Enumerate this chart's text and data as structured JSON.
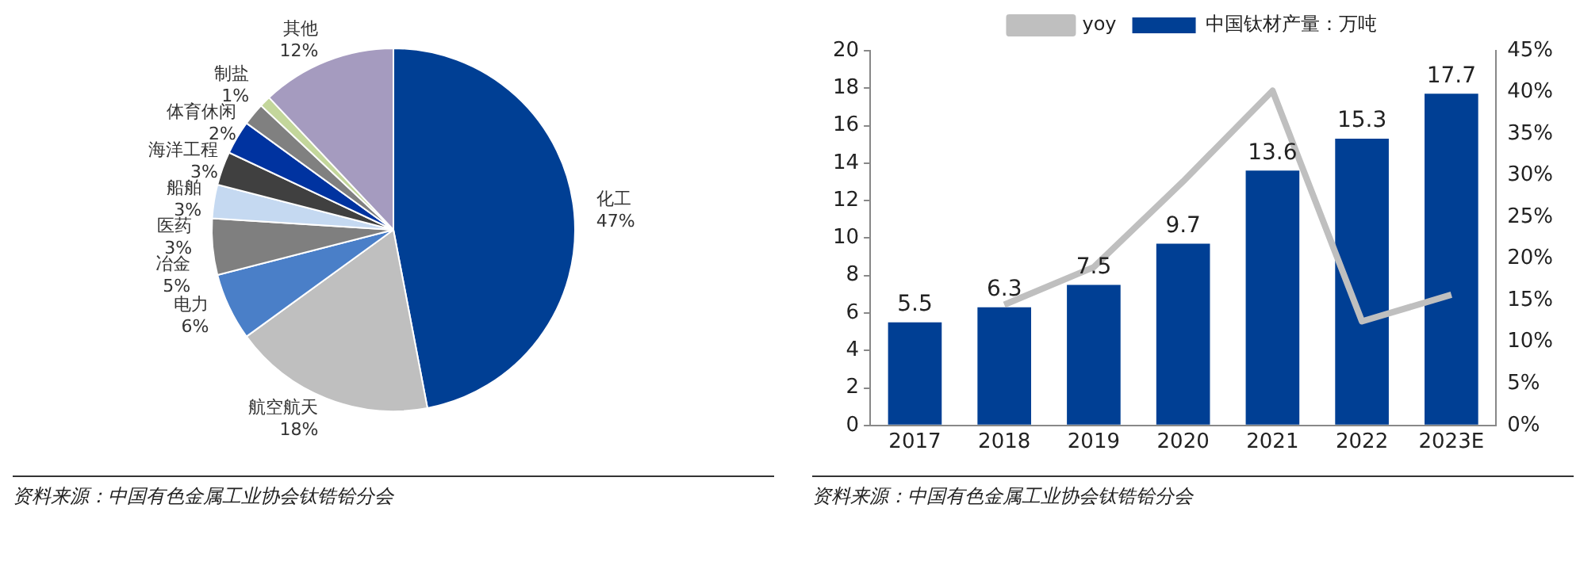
{
  "chart_data": [
    {
      "type": "pie",
      "categories": [
        "化工",
        "航空航天",
        "电力",
        "冶金",
        "医药",
        "船舶",
        "海洋工程",
        "体育休闲",
        "制盐",
        "其他"
      ],
      "values": [
        47,
        18,
        6,
        5,
        3,
        3,
        3,
        2,
        1,
        12
      ],
      "colors": [
        "#003f94",
        "#bfbfbf",
        "#4a7fc8",
        "#7f7f7f",
        "#c5d9f1",
        "#404040",
        "#0033a0",
        "#808080",
        "#c3d69b",
        "#a59bbf"
      ],
      "value_labels": [
        "47%",
        "18%",
        "6%",
        "5%",
        "3%",
        "3%",
        "3%",
        "2%",
        "1%",
        "12%"
      ],
      "legend": false,
      "annotations": [
        "资料来源：中国有色金属工业协会钛锆铪分会"
      ]
    },
    {
      "type": "bar",
      "categories": [
        "2017",
        "2018",
        "2019",
        "2020",
        "2021",
        "2022",
        "2023E"
      ],
      "series": [
        {
          "name": "中国钛材产量：万吨",
          "color": "#003f94",
          "values": [
            5.5,
            6.3,
            7.5,
            9.7,
            13.6,
            15.3,
            17.7
          ],
          "value_labels": [
            "5.5",
            "6.3",
            "7.5",
            "9.7",
            "13.6",
            "15.3",
            "17.7"
          ]
        },
        {
          "name": "yoy",
          "type": "line",
          "axis": "y2",
          "color": "#bfbfbf",
          "values": [
            null,
            14.5,
            19,
            29.3,
            40.2,
            12.5,
            15.7
          ]
        }
      ],
      "ylim": [
        0,
        20
      ],
      "yticks": [
        0,
        2,
        4,
        6,
        8,
        10,
        12,
        14,
        16,
        18,
        20
      ],
      "y2lim": [
        0,
        45
      ],
      "y2ticks": [
        {
          "value": 0,
          "label": "0%"
        },
        {
          "value": 5,
          "label": "5%"
        },
        {
          "value": 10,
          "label": "10%"
        },
        {
          "value": 15,
          "label": "15%"
        },
        {
          "value": 20,
          "label": "20%"
        },
        {
          "value": 25,
          "label": "25%"
        },
        {
          "value": 30,
          "label": "30%"
        },
        {
          "value": 35,
          "label": "35%"
        },
        {
          "value": 40,
          "label": "40%"
        },
        {
          "value": 45,
          "label": "45%"
        }
      ],
      "grid": false,
      "legend": "top",
      "marker": "none",
      "annotations": [
        "资料来源：中国有色金属工业协会钛锆铪分会"
      ]
    }
  ]
}
